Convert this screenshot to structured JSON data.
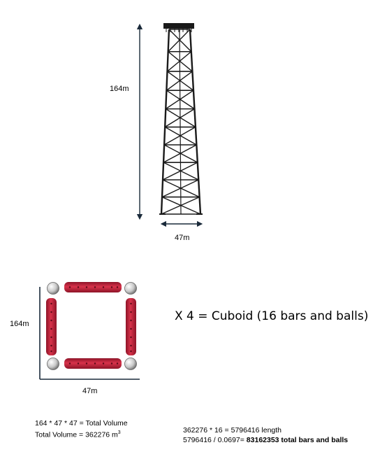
{
  "tower": {
    "height_label": "164m",
    "width_label": "47m"
  },
  "square": {
    "height_label": "164m",
    "width_label": "47m",
    "multiplier_text": "X 4 = Cuboid (16 bars and balls)"
  },
  "calc_left": {
    "line1": "164 * 47 * 47 = Total Volume",
    "line2_prefix": "Total Volume = 362276 m",
    "line2_sup": "3"
  },
  "calc_right": {
    "line1": "362276 * 16 = 5796416 length",
    "line2_prefix": "5796416 / 0.0697= ",
    "line2_bold": "83162353 total bars and balls"
  },
  "colors": {
    "tower": "#1a1a1a",
    "bar": "#c8243c",
    "ball": "#d0d0d0"
  }
}
